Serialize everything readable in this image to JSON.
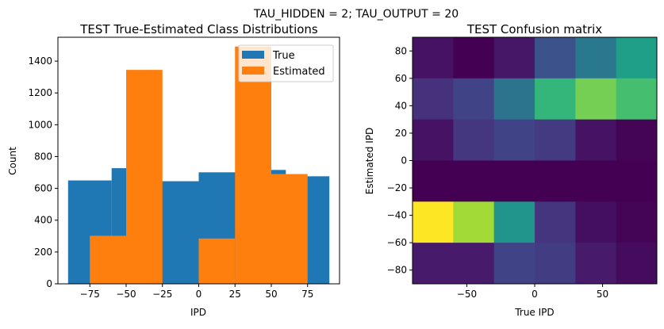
{
  "suptitle": "TAU_HIDDEN = 2; TAU_OUTPUT = 20",
  "chart_data": [
    {
      "type": "bar",
      "title": "TEST True-Estimated Class Distributions",
      "xlabel": "IPD",
      "ylabel": "Count",
      "xlim": [
        -97,
        97
      ],
      "ylim": [
        0,
        1550
      ],
      "xticks": [
        -75,
        -50,
        -25,
        0,
        25,
        50,
        75
      ],
      "yticks": [
        0,
        200,
        400,
        600,
        800,
        1000,
        1200,
        1400
      ],
      "legend": "top-right",
      "series": [
        {
          "name": "True",
          "color": "#1f77b4",
          "bin_edges": [
            -90,
            -60,
            -30,
            0,
            30,
            60,
            90
          ],
          "values": [
            650,
            727,
            645,
            701,
            716,
            676
          ]
        },
        {
          "name": "Estimated",
          "color": "#ff7f0e",
          "bin_edges": [
            -75,
            -50,
            -25,
            0,
            25,
            50,
            75
          ],
          "values": [
            302,
            1345,
            0,
            285,
            1492,
            690
          ]
        }
      ]
    },
    {
      "type": "heatmap",
      "title": "TEST Confusion matrix",
      "xlabel": "True IPD",
      "ylabel": "Estimated IPD",
      "xlim": [
        -90,
        90
      ],
      "ylim": [
        -90,
        90
      ],
      "xticks": [
        -50,
        0,
        50
      ],
      "yticks": [
        -80,
        -60,
        -40,
        -20,
        0,
        20,
        40,
        60,
        80
      ],
      "colormap": "viridis",
      "x_centers": [
        -75,
        -45,
        -15,
        15,
        45,
        75
      ],
      "y_centers": [
        75,
        45,
        15,
        -15,
        -45,
        -75
      ],
      "values_normalized": [
        [
          0.05,
          0.0,
          0.06,
          0.25,
          0.4,
          0.56
        ],
        [
          0.14,
          0.2,
          0.38,
          0.66,
          0.79,
          0.7
        ],
        [
          0.05,
          0.16,
          0.2,
          0.17,
          0.05,
          0.01
        ],
        [
          0.0,
          0.0,
          0.0,
          0.0,
          0.0,
          0.0
        ],
        [
          1.0,
          0.86,
          0.52,
          0.15,
          0.04,
          0.01
        ],
        [
          0.07,
          0.07,
          0.2,
          0.18,
          0.07,
          0.03
        ]
      ]
    }
  ]
}
